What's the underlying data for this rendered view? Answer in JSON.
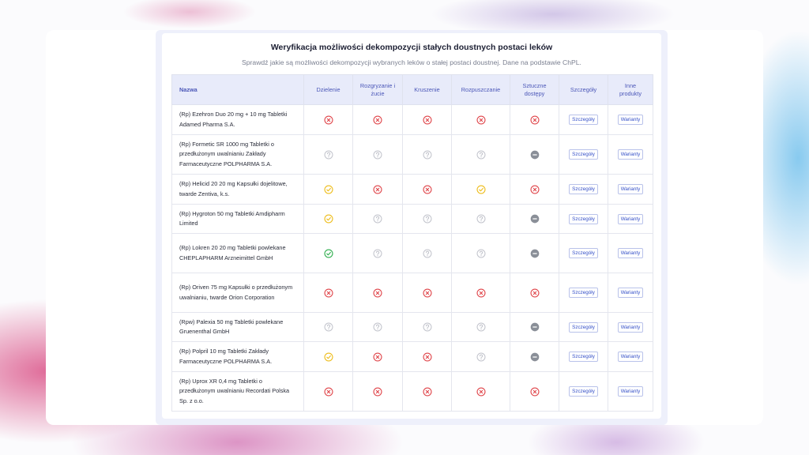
{
  "header": {
    "title": "Weryfikacja możliwości dekompozycji stałych doustnych postaci leków",
    "subtitle": "Sprawdź jakie są możliwości dekompozycji wybranych leków o stałej postaci doustnej. Dane na podstawie ChPL."
  },
  "table": {
    "columns": [
      "Nazwa",
      "Dzielenie",
      "Rozgryzanie i żucie",
      "Kruszenie",
      "Rozpuszczanie",
      "Sztuczne dostępy",
      "Szczegóły",
      "Inne produkty"
    ],
    "rows": [
      {
        "name": "(Rp) Ezehron Duo 20 mg + 10 mg Tabletki Adamed Pharma S.A.",
        "details": "Szczegóły",
        "variants": "Warianty"
      },
      {
        "name": "(Rp) Formetic SR 1000 mg Tabletki o przedłużonym uwalnianiu Zakłady Farmaceutyczne POLPHARMA S.A.",
        "details": "Szczegóły",
        "variants": "Warianty"
      },
      {
        "name": "(Rp) Helicid 20 20 mg Kapsułki dojelitowe, twarde Zentiva, k.s.",
        "details": "Szczegóły",
        "variants": "Warianty"
      },
      {
        "name": "(Rp) Hygroton 50 mg Tabletki Amdipharm Limited",
        "details": "Szczegóły",
        "variants": "Warianty"
      },
      {
        "name": "(Rp) Lokren 20 20 mg Tabletki powlekane CHEPLAPHARM Arzneimittel GmbH",
        "details": "Szczegóły",
        "variants": "Warianty"
      },
      {
        "name": "(Rp) Oriven 75 mg Kapsułki o przedłużonym uwalnianiu, twarde Orion Corporation",
        "details": "Szczegóły",
        "variants": "Warianty"
      },
      {
        "name": "(Rpw) Palexia 50 mg Tabletki powlekane Gruenenthal GmbH",
        "details": "Szczegóły",
        "variants": "Warianty"
      },
      {
        "name": "(Rp) Polpril 10 mg Tabletki Zakłady Farmaceutyczne POLPHARMA S.A.",
        "details": "Szczegóły",
        "variants": "Warianty"
      },
      {
        "name": "(Rp) Uprox XR 0,4 mg Tabletki o przedłużonym uwalnianiu Recordati Polska Sp. z o.o.",
        "details": "Szczegóły",
        "variants": "Warianty"
      }
    ]
  }
}
